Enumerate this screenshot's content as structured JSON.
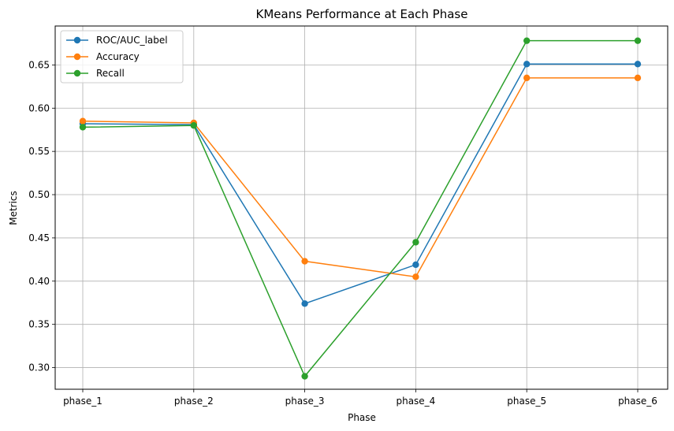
{
  "chart_data": {
    "type": "line",
    "title": "KMeans Performance at Each Phase",
    "xlabel": "Phase",
    "ylabel": "Metrics",
    "categories": [
      "phase_1",
      "phase_2",
      "phase_3",
      "phase_4",
      "phase_5",
      "phase_6"
    ],
    "ylim": [
      0.275,
      0.695
    ],
    "yticks": [
      0.3,
      0.35,
      0.4,
      0.45,
      0.5,
      0.55,
      0.6,
      0.65
    ],
    "ytick_labels": [
      "0.30",
      "0.35",
      "0.40",
      "0.45",
      "0.50",
      "0.55",
      "0.60",
      "0.65"
    ],
    "grid": true,
    "legend": "upper-left",
    "series": [
      {
        "name": "ROC/AUC_label",
        "color": "#1f77b4",
        "values": [
          0.582,
          0.581,
          0.374,
          0.419,
          0.651,
          0.651
        ]
      },
      {
        "name": "Accuracy",
        "color": "#ff7f0e",
        "values": [
          0.585,
          0.583,
          0.423,
          0.405,
          0.635,
          0.635
        ]
      },
      {
        "name": "Recall",
        "color": "#2ca02c",
        "values": [
          0.578,
          0.58,
          0.29,
          0.445,
          0.678,
          0.678
        ]
      }
    ]
  }
}
